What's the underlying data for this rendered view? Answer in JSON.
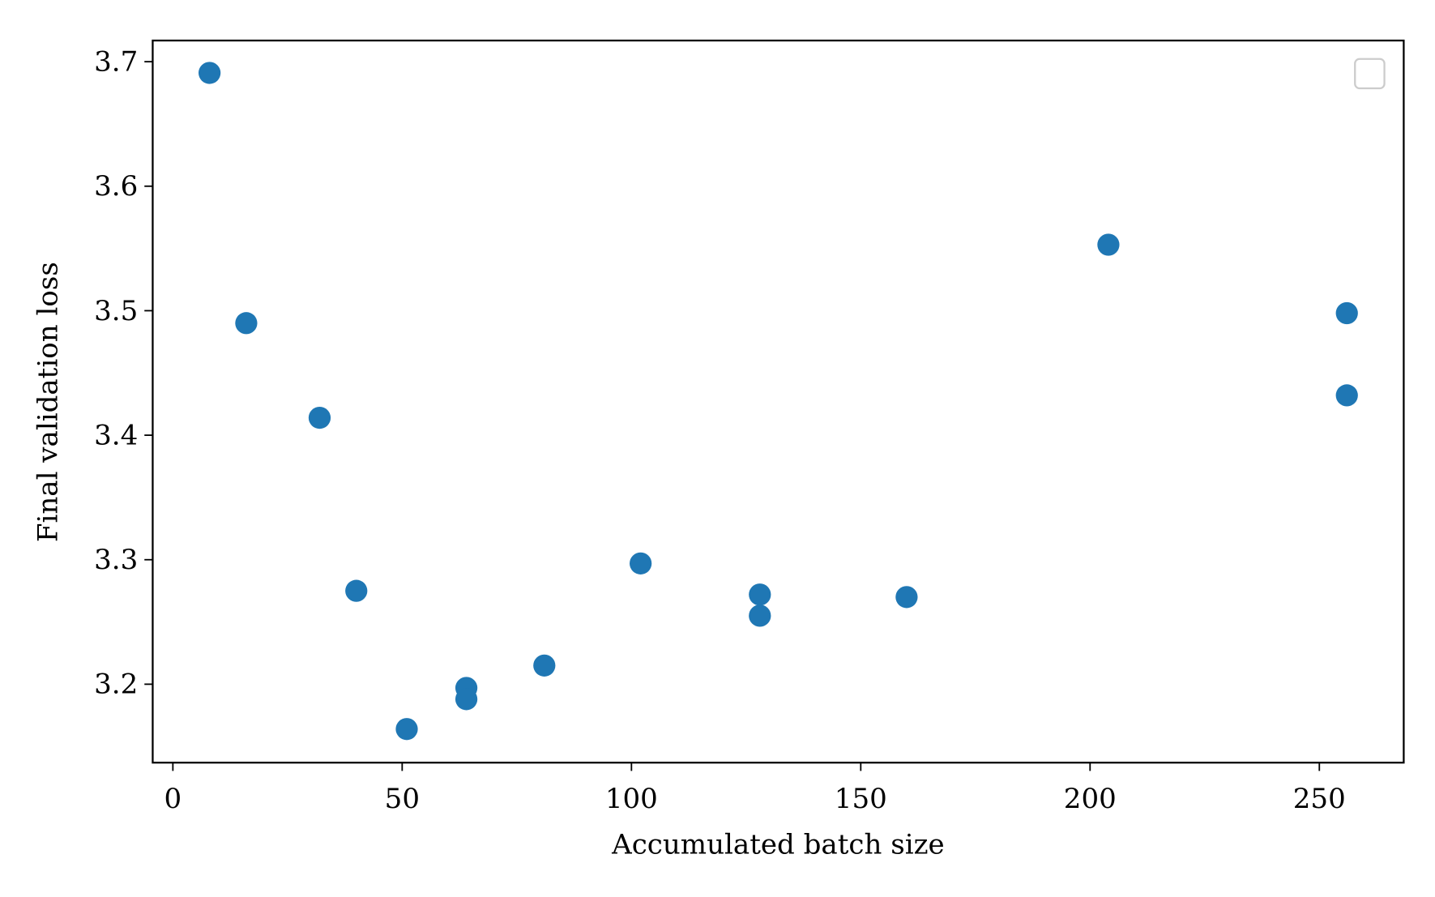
{
  "chart_data": {
    "type": "scatter",
    "xlabel": "Accumulated batch size",
    "ylabel": "Final validation loss",
    "x": [
      8,
      16,
      32,
      40,
      51,
      64,
      64,
      81,
      102,
      128,
      128,
      160,
      204,
      256,
      256
    ],
    "values": [
      3.691,
      3.49,
      3.414,
      3.275,
      3.164,
      3.197,
      3.188,
      3.215,
      3.297,
      3.272,
      3.255,
      3.27,
      3.553,
      3.498,
      3.432
    ],
    "color": "#1f77b4",
    "xlim": [
      -4.4,
      268.4
    ],
    "ylim": [
      3.137,
      3.717
    ],
    "xticks": [
      0,
      50,
      100,
      150,
      200,
      250
    ],
    "yticks": [
      3.2,
      3.3,
      3.4,
      3.5,
      3.6,
      3.7
    ]
  }
}
